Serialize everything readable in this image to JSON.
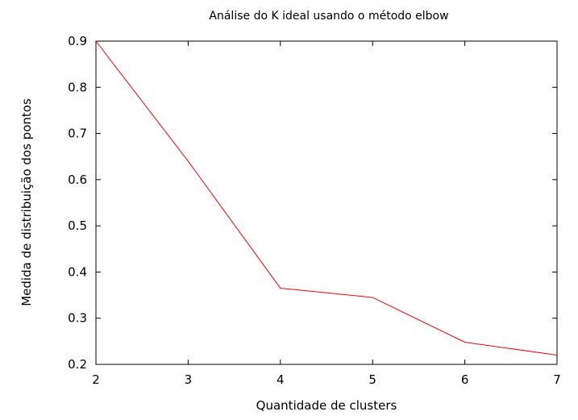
{
  "chart_data": {
    "type": "line",
    "title": "Análise do K ideal usando o método elbow",
    "xlabel": "Quantidade de clusters",
    "ylabel": "Medida de distribuição dos pontos",
    "x": [
      2,
      3,
      4,
      5,
      6,
      7
    ],
    "series": [
      {
        "values": [
          0.9,
          0.64,
          0.365,
          0.345,
          0.248,
          0.22
        ],
        "color": "#ff0000"
      }
    ],
    "xlim": [
      2,
      7
    ],
    "ylim": [
      0.2,
      0.9
    ],
    "xticks": [
      "2",
      "3",
      "4",
      "5",
      "6",
      "7"
    ],
    "yticks": [
      "0.2",
      "0.3",
      "0.4",
      "0.5",
      "0.6",
      "0.7",
      "0.8",
      "0.9"
    ],
    "grid": false,
    "legend": "none"
  }
}
